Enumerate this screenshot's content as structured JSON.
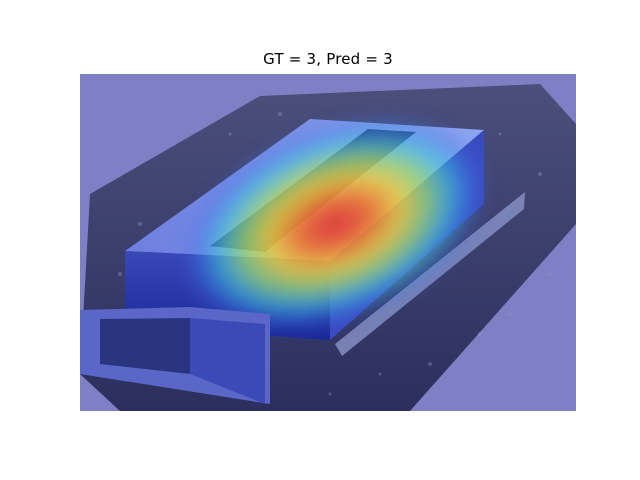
{
  "figure": {
    "title": "GT = 3, Pred = 3"
  },
  "overlay": {
    "type": "class-activation heatmap over photo",
    "colormap": "jet",
    "background_tint": "#7f7fc6"
  }
}
